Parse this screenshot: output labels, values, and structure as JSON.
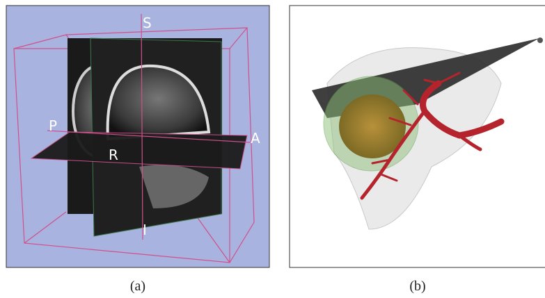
{
  "panels": [
    {
      "caption": "(a)",
      "labels": {
        "superior": "S",
        "posterior": "P",
        "anterior": "A",
        "right": "R",
        "inferior": "I"
      }
    },
    {
      "caption": "(b)"
    }
  ]
}
